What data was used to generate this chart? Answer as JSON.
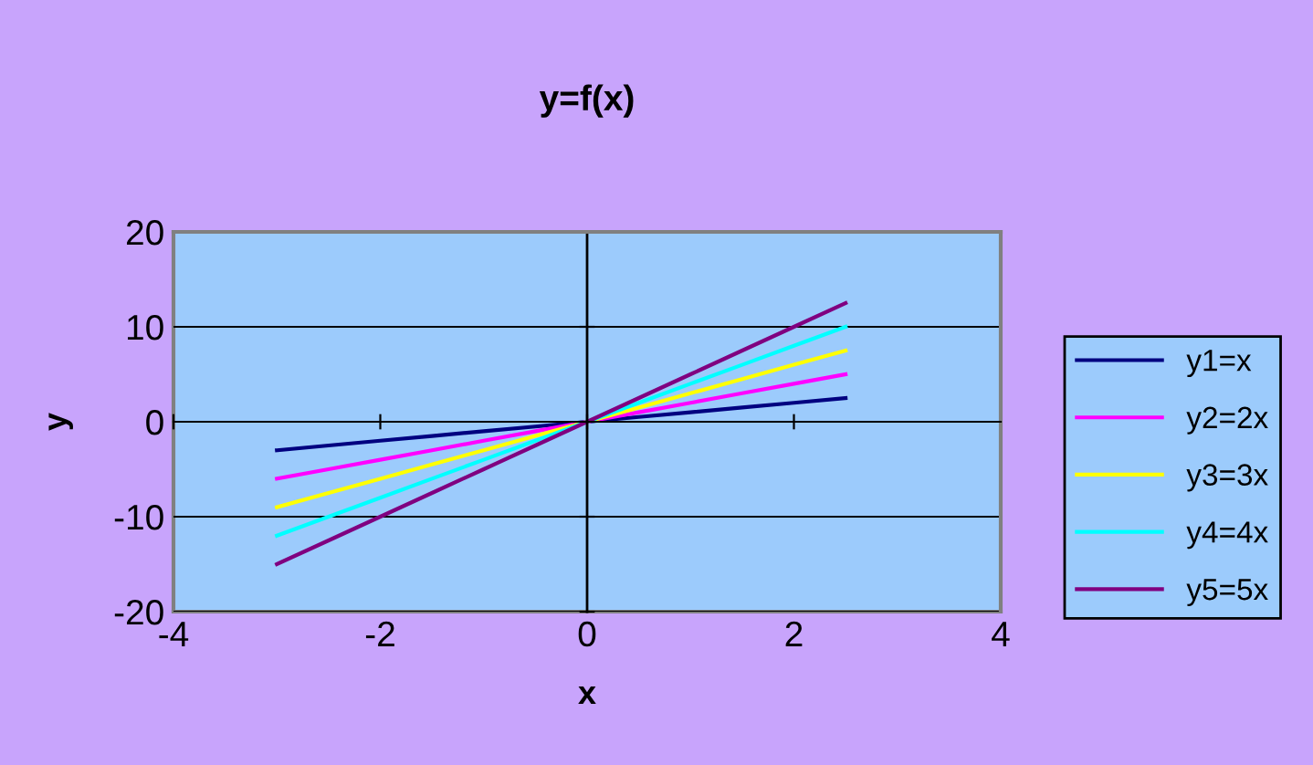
{
  "chart_data": {
    "type": "line",
    "title": "y=f(x)",
    "xlabel": "x",
    "ylabel": "y",
    "x": [
      -3,
      -2.5,
      -2,
      -1.5,
      -1,
      -0.5,
      0,
      0.5,
      1,
      1.5,
      2,
      2.5
    ],
    "series": [
      {
        "name": "y1=x",
        "color": "#000080",
        "values": [
          -3,
          -2.5,
          -2,
          -1.5,
          -1,
          -0.5,
          0,
          0.5,
          1,
          1.5,
          2,
          2.5
        ]
      },
      {
        "name": "y2=2x",
        "color": "#ff00ff",
        "values": [
          -6,
          -5,
          -4,
          -3,
          -2,
          -1,
          0,
          1,
          2,
          3,
          4,
          5
        ]
      },
      {
        "name": "y3=3x",
        "color": "#ffff00",
        "values": [
          -9,
          -7.5,
          -6,
          -4.5,
          -3,
          -1.5,
          0,
          1.5,
          3,
          4.5,
          6,
          7.5
        ]
      },
      {
        "name": "y4=4x",
        "color": "#00ffff",
        "values": [
          -12,
          -10,
          -8,
          -6,
          -4,
          -2,
          0,
          2,
          4,
          6,
          8,
          10
        ]
      },
      {
        "name": "y5=5x",
        "color": "#800080",
        "values": [
          -15,
          -12.5,
          -10,
          -7.5,
          -5,
          -2.5,
          0,
          2.5,
          5,
          7.5,
          10,
          12.5
        ]
      }
    ],
    "xlim": [
      -4,
      4
    ],
    "xticks": [
      -4,
      -2,
      0,
      2,
      4
    ],
    "ylim": [
      -20,
      20
    ],
    "yticks": [
      -20,
      -10,
      0,
      10,
      20
    ],
    "grid": "y",
    "legend": "right",
    "marker": "none",
    "line_style": "solid"
  }
}
